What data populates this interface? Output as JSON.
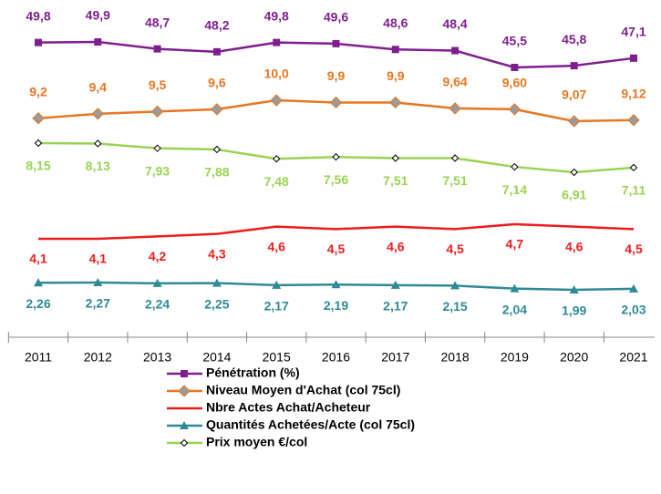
{
  "chart_data": {
    "type": "line",
    "categories": [
      "2011",
      "2012",
      "2013",
      "2014",
      "2015",
      "2016",
      "2017",
      "2018",
      "2019",
      "2020",
      "2021"
    ],
    "series": [
      {
        "name": "Pénétration (%)",
        "color": "#7f1f8f",
        "marker": "square",
        "values": [
          49.8,
          49.9,
          48.7,
          48.2,
          49.8,
          49.6,
          48.6,
          48.4,
          45.5,
          45.8,
          47.1
        ],
        "value_labels": [
          "49,8",
          "49,9",
          "48,7",
          "48,2",
          "49,8",
          "49,6",
          "48,6",
          "48,4",
          "45,5",
          "45,8",
          "47,1"
        ]
      },
      {
        "name": "Niveau Moyen d'Achat (col 75cl)",
        "color": "#e8761f",
        "marker": "diamond-gray",
        "values": [
          9.2,
          9.4,
          9.5,
          9.6,
          10.0,
          9.9,
          9.9,
          9.64,
          9.6,
          9.07,
          9.12
        ],
        "value_labels": [
          "9,2",
          "9,4",
          "9,5",
          "9,6",
          "10,0",
          "9,9",
          "9,9",
          "9,64",
          "9,60",
          "9,07",
          "9,12"
        ]
      },
      {
        "name": "Nbre Actes Achat/Acheteur",
        "color": "#ee1c1c",
        "marker": "none",
        "values": [
          4.1,
          4.1,
          4.2,
          4.3,
          4.6,
          4.5,
          4.6,
          4.5,
          4.7,
          4.6,
          4.5
        ],
        "value_labels": [
          "4,1",
          "4,1",
          "4,2",
          "4,3",
          "4,6",
          "4,5",
          "4,6",
          "4,5",
          "4,7",
          "4,6",
          "4,5"
        ]
      },
      {
        "name": "Quantités Achetées/Acte (col 75cl)",
        "color": "#2f8a96",
        "marker": "triangle",
        "values": [
          2.26,
          2.27,
          2.24,
          2.25,
          2.17,
          2.19,
          2.17,
          2.15,
          2.04,
          1.99,
          2.03
        ],
        "value_labels": [
          "2,26",
          "2,27",
          "2,24",
          "2,25",
          "2,17",
          "2,19",
          "2,17",
          "2,15",
          "2,04",
          "1,99",
          "2,03"
        ]
      },
      {
        "name": "Prix moyen €/col",
        "color": "#9ad353",
        "marker": "diamond-white",
        "values": [
          8.15,
          8.13,
          7.93,
          7.88,
          7.48,
          7.56,
          7.51,
          7.51,
          7.14,
          6.91,
          7.11
        ],
        "value_labels": [
          "8,15",
          "8,13",
          "7,93",
          "7,88",
          "7,48",
          "7,56",
          "7,51",
          "7,51",
          "7,14",
          "6,91",
          "7,11"
        ]
      }
    ]
  }
}
